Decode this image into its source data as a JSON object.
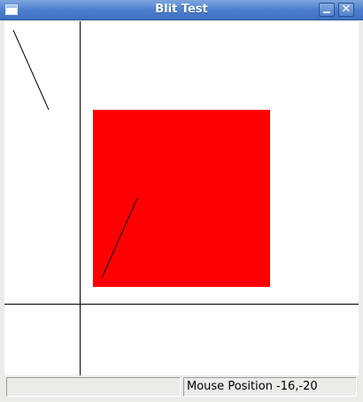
{
  "window": {
    "title": "Blit Test"
  },
  "titlebar": {
    "minimize_glyph": "_",
    "close_glyph": "✕"
  },
  "canvas": {
    "background": "#ffffff",
    "square_color": "#ff0000",
    "line_color": "#000000"
  },
  "statusbar": {
    "left_text": "",
    "mouse_position": "Mouse Position -16,-20"
  }
}
